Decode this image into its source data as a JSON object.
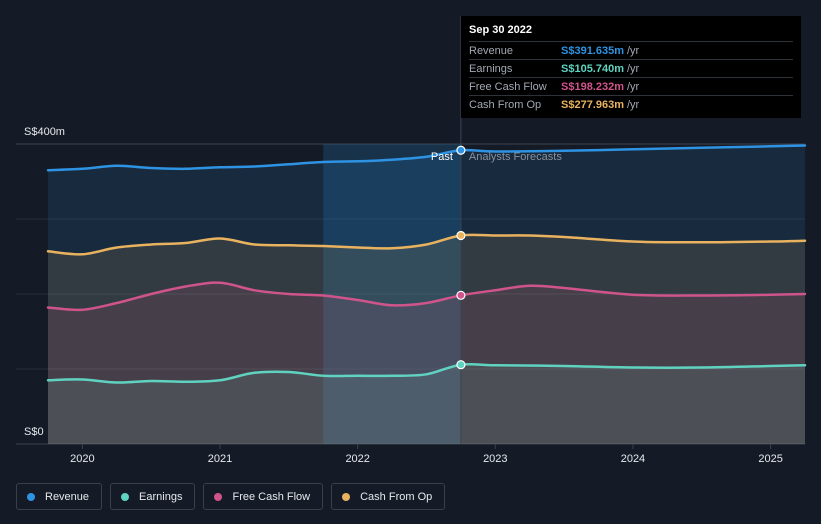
{
  "chart_data": {
    "type": "area",
    "title": "",
    "currency_prefix": "S$",
    "y_unit": "m",
    "ylim": [
      0,
      400
    ],
    "y_tick_labels": [
      "S$0",
      "S$400m"
    ],
    "x_tick_labels": [
      "2020",
      "2021",
      "2022",
      "2023",
      "2024",
      "2025"
    ],
    "x_ticks": [
      2020.0,
      2021.0,
      2022.0,
      2023.0,
      2024.0,
      2025.0
    ],
    "xlim": [
      2019.75,
      2025.25
    ],
    "past_shade_start": 2021.75,
    "divider_x": 2022.75,
    "past_label": "Past",
    "forecast_label": "Analysts Forecasts",
    "series": [
      {
        "name": "Revenue",
        "color": "#2e93e3",
        "points": [
          [
            2019.75,
            365
          ],
          [
            2020.0,
            367
          ],
          [
            2020.25,
            371
          ],
          [
            2020.5,
            368
          ],
          [
            2020.75,
            367
          ],
          [
            2021.0,
            369
          ],
          [
            2021.25,
            370
          ],
          [
            2021.5,
            373
          ],
          [
            2021.75,
            376
          ],
          [
            2022.0,
            377
          ],
          [
            2022.25,
            379
          ],
          [
            2022.5,
            383
          ],
          [
            2022.75,
            391.635
          ],
          [
            2023.0,
            390
          ],
          [
            2023.5,
            391
          ],
          [
            2024.0,
            393
          ],
          [
            2024.5,
            395
          ],
          [
            2025.0,
            397
          ],
          [
            2025.25,
            398
          ]
        ]
      },
      {
        "name": "Earnings",
        "color": "#5fd3c0",
        "points": [
          [
            2019.75,
            85
          ],
          [
            2020.0,
            86
          ],
          [
            2020.25,
            82
          ],
          [
            2020.5,
            84
          ],
          [
            2020.75,
            83
          ],
          [
            2021.0,
            85
          ],
          [
            2021.25,
            95
          ],
          [
            2021.5,
            96
          ],
          [
            2021.75,
            91
          ],
          [
            2022.0,
            91
          ],
          [
            2022.25,
            91
          ],
          [
            2022.5,
            93
          ],
          [
            2022.75,
            105.74
          ],
          [
            2023.0,
            105
          ],
          [
            2023.5,
            104
          ],
          [
            2024.0,
            102
          ],
          [
            2024.5,
            102
          ],
          [
            2025.0,
            104
          ],
          [
            2025.25,
            105
          ]
        ]
      },
      {
        "name": "Free Cash Flow",
        "color": "#d0548c",
        "points": [
          [
            2019.75,
            182
          ],
          [
            2020.0,
            179
          ],
          [
            2020.25,
            188
          ],
          [
            2020.5,
            200
          ],
          [
            2020.75,
            210
          ],
          [
            2021.0,
            215
          ],
          [
            2021.25,
            205
          ],
          [
            2021.5,
            200
          ],
          [
            2021.75,
            198
          ],
          [
            2022.0,
            192
          ],
          [
            2022.25,
            185
          ],
          [
            2022.5,
            188
          ],
          [
            2022.75,
            198.232
          ],
          [
            2023.0,
            205
          ],
          [
            2023.25,
            211
          ],
          [
            2023.5,
            208
          ],
          [
            2024.0,
            199
          ],
          [
            2024.5,
            198
          ],
          [
            2025.0,
            199
          ],
          [
            2025.25,
            200
          ]
        ]
      },
      {
        "name": "Cash From Op",
        "color": "#e9b25f",
        "points": [
          [
            2019.75,
            257
          ],
          [
            2020.0,
            253
          ],
          [
            2020.25,
            262
          ],
          [
            2020.5,
            266
          ],
          [
            2020.75,
            268
          ],
          [
            2021.0,
            274
          ],
          [
            2021.25,
            266
          ],
          [
            2021.5,
            265
          ],
          [
            2021.75,
            264
          ],
          [
            2022.0,
            262
          ],
          [
            2022.25,
            261
          ],
          [
            2022.5,
            266
          ],
          [
            2022.75,
            277.963
          ],
          [
            2023.0,
            278
          ],
          [
            2023.25,
            278
          ],
          [
            2023.5,
            276
          ],
          [
            2024.0,
            270
          ],
          [
            2024.5,
            269
          ],
          [
            2025.0,
            270
          ],
          [
            2025.25,
            271
          ]
        ]
      }
    ]
  },
  "tooltip": {
    "date": "Sep 30 2022",
    "unit": "/yr",
    "rows": [
      {
        "label": "Revenue",
        "value": "S$391.635m",
        "color": "#2e93e3"
      },
      {
        "label": "Earnings",
        "value": "S$105.740m",
        "color": "#5fd3c0"
      },
      {
        "label": "Free Cash Flow",
        "value": "S$198.232m",
        "color": "#d0548c"
      },
      {
        "label": "Cash From Op",
        "value": "S$277.963m",
        "color": "#e9b25f"
      }
    ]
  },
  "legend": [
    {
      "label": "Revenue",
      "color": "#2e93e3"
    },
    {
      "label": "Earnings",
      "color": "#5fd3c0"
    },
    {
      "label": "Free Cash Flow",
      "color": "#d0548c"
    },
    {
      "label": "Cash From Op",
      "color": "#e9b25f"
    }
  ]
}
